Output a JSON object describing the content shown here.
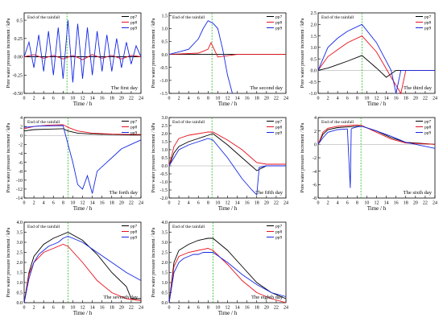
{
  "figure": {
    "common": {
      "ylabel": "Pore water pressure increment / kPa",
      "xlabel": "Time / h",
      "rain_note": "End of the rainfall",
      "series_colors": {
        "pp7": "#000000",
        "pp8": "#e8101c",
        "pp9": "#1428e6"
      },
      "rain_line_color": "#22bb22"
    },
    "x_ticks": [
      "0",
      "2",
      "4",
      "6",
      "8",
      "10",
      "12",
      "14",
      "16",
      "18",
      "20",
      "22",
      "24"
    ]
  },
  "chart_data": [
    {
      "type": "line",
      "title": "The first day",
      "xlim": [
        0,
        24
      ],
      "ylim": [
        -0.5,
        0.6
      ],
      "yticks": [
        "0.5",
        "0.25",
        "0.00",
        "-0.25",
        "-0.50"
      ],
      "ytick_values": [
        0.5,
        0.25,
        0,
        -0.25,
        -0.5
      ],
      "rain_end": 8.8,
      "series": [
        {
          "name": "pp7",
          "x": [
            0,
            4,
            8,
            12,
            16,
            20,
            24
          ],
          "y": [
            0,
            0,
            0,
            0,
            0,
            0,
            0
          ]
        },
        {
          "name": "pp8",
          "x": [
            0,
            2,
            4,
            6,
            8,
            10,
            12,
            14,
            16,
            18,
            20,
            22,
            24
          ],
          "y": [
            0,
            0.03,
            -0.02,
            0.02,
            -0.03,
            0.02,
            -0.04,
            0.03,
            -0.02,
            0.02,
            -0.03,
            0.02,
            0
          ]
        },
        {
          "name": "pp9",
          "x": [
            0,
            1,
            2,
            3,
            4,
            5,
            6,
            7,
            8,
            9,
            10,
            11,
            12,
            13,
            14,
            15,
            16,
            17,
            18,
            19,
            20,
            21,
            22,
            23,
            24
          ],
          "y": [
            0,
            0.2,
            -0.15,
            0.3,
            -0.2,
            0.35,
            -0.25,
            0.4,
            -0.3,
            0.5,
            -0.35,
            0.45,
            -0.3,
            0.4,
            -0.25,
            0.35,
            -0.2,
            0.3,
            -0.2,
            0.25,
            -0.15,
            0.2,
            -0.1,
            0.15,
            0
          ]
        }
      ]
    },
    {
      "type": "line",
      "title": "The second day",
      "xlim": [
        0,
        24
      ],
      "ylim": [
        -1.5,
        1.6
      ],
      "yticks": [
        "1.5",
        "1.0",
        "0.5",
        "0.0",
        "-0.5",
        "-1.0",
        "-1.5"
      ],
      "ytick_values": [
        1.5,
        1,
        0.5,
        0,
        -0.5,
        -1,
        -1.5
      ],
      "rain_end": 8.8,
      "series": [
        {
          "name": "pp7",
          "x": [
            0,
            4,
            8,
            12,
            16,
            20,
            24
          ],
          "y": [
            0,
            0,
            0,
            0,
            0,
            0,
            0
          ]
        },
        {
          "name": "pp8",
          "x": [
            0,
            6,
            8,
            8.6,
            10,
            12,
            14,
            18,
            24
          ],
          "y": [
            0,
            0.05,
            0.2,
            0.45,
            -0.1,
            -0.05,
            0,
            0,
            0
          ]
        },
        {
          "name": "pp9",
          "x": [
            0,
            2,
            4,
            6,
            7,
            8,
            9,
            10,
            11,
            12,
            13
          ],
          "y": [
            0,
            0.1,
            0.2,
            0.6,
            1.0,
            1.3,
            1.2,
            1.0,
            0.2,
            -0.8,
            -1.5
          ]
        }
      ]
    },
    {
      "type": "line",
      "title": "The third day",
      "xlim": [
        0,
        24
      ],
      "ylim": [
        -1.0,
        2.5
      ],
      "yticks": [
        "2.5",
        "2.0",
        "1.5",
        "1.0",
        "0.5",
        "0.0",
        "-0.5",
        "-1.0"
      ],
      "ytick_values": [
        2.5,
        2,
        1.5,
        1,
        0.5,
        0,
        -0.5,
        -1
      ],
      "rain_end": 9.0,
      "series": [
        {
          "name": "pp7",
          "x": [
            0,
            2,
            4,
            6,
            9,
            12,
            14,
            16,
            24
          ],
          "y": [
            0,
            0.1,
            0.25,
            0.4,
            0.65,
            0.1,
            -0.3,
            0,
            0
          ]
        },
        {
          "name": "pp8",
          "x": [
            0,
            1,
            2,
            4,
            6,
            9,
            12,
            15,
            17,
            18,
            24
          ],
          "y": [
            0,
            0.3,
            0.6,
            0.9,
            1.2,
            1.5,
            0.8,
            -0.3,
            -1.0,
            0,
            0
          ]
        },
        {
          "name": "pp9",
          "x": [
            0,
            1,
            2,
            4,
            6,
            9,
            12,
            15,
            16,
            17,
            24
          ],
          "y": [
            0,
            0.5,
            1.0,
            1.4,
            1.7,
            2.0,
            1.2,
            0,
            -1.0,
            0,
            0
          ]
        }
      ]
    },
    {
      "type": "line",
      "title": "The forth day",
      "xlim": [
        0,
        24
      ],
      "ylim": [
        -14,
        4
      ],
      "yticks": [
        "4",
        "2",
        "0",
        "-2",
        "-4",
        "-6",
        "-8",
        "-10",
        "-12",
        "-14"
      ],
      "ytick_values": [
        4,
        2,
        0,
        -2,
        -4,
        -6,
        -8,
        -10,
        -12,
        -14
      ],
      "rain_end": 9.0,
      "series": [
        {
          "name": "pp7",
          "x": [
            0,
            2,
            5,
            8,
            9,
            11,
            14,
            18,
            22,
            24
          ],
          "y": [
            1,
            1.3,
            1.4,
            1.5,
            1.0,
            0.5,
            0.3,
            0.2,
            0.1,
            0.1
          ]
        },
        {
          "name": "pp8",
          "x": [
            0,
            2,
            5,
            8,
            9,
            11,
            14,
            18,
            22,
            24
          ],
          "y": [
            1.5,
            2.0,
            2.3,
            2.4,
            1.8,
            1.0,
            0.5,
            0.3,
            0.2,
            0.2
          ]
        },
        {
          "name": "pp9",
          "x": [
            0,
            3,
            8,
            9,
            10,
            11,
            12,
            13,
            14,
            15,
            16,
            18,
            20,
            22,
            24
          ],
          "y": [
            1.8,
            2.1,
            2.2,
            -2,
            -6,
            -11,
            -12,
            -9,
            -13,
            -8,
            -7,
            -5,
            -3,
            -2,
            -1
          ]
        }
      ]
    },
    {
      "type": "line",
      "title": "The fifth day",
      "xlim": [
        0,
        24
      ],
      "ylim": [
        -2.0,
        3.0
      ],
      "yticks": [
        "3.0",
        "2.5",
        "2.0",
        "1.5",
        "1.0",
        "0.5",
        "0.0",
        "-0.5",
        "-1.0",
        "-1.5",
        "-2.0"
      ],
      "ytick_values": [
        3,
        2.5,
        2,
        1.5,
        1,
        0.5,
        0,
        -0.5,
        -1,
        -1.5,
        -2
      ],
      "rain_end": 8.8,
      "series": [
        {
          "name": "pp7",
          "x": [
            0,
            1,
            2,
            4,
            6,
            8,
            9,
            12,
            15,
            18,
            20,
            24
          ],
          "y": [
            0,
            0.8,
            1.2,
            1.5,
            1.7,
            1.9,
            2.0,
            1.3,
            0.5,
            -0.3,
            0,
            0
          ]
        },
        {
          "name": "pp8",
          "x": [
            0,
            1,
            2,
            4,
            6,
            8,
            9,
            12,
            15,
            18,
            20,
            24
          ],
          "y": [
            0,
            1.2,
            1.7,
            1.9,
            2.0,
            2.1,
            2.1,
            1.6,
            1.0,
            0.2,
            0.1,
            0.1
          ]
        },
        {
          "name": "pp9",
          "x": [
            0,
            1,
            2,
            4,
            6,
            8,
            9,
            12,
            15,
            17,
            18,
            18.5,
            20,
            24
          ],
          "y": [
            0,
            0.5,
            1.0,
            1.3,
            1.5,
            1.7,
            1.6,
            0.5,
            -0.8,
            -1.5,
            -1.8,
            -0.1,
            0,
            0
          ]
        }
      ]
    },
    {
      "type": "line",
      "title": "The sixth day",
      "xlim": [
        0,
        24
      ],
      "ylim": [
        -8,
        4
      ],
      "yticks": [
        "4",
        "2",
        "0",
        "-2",
        "-4",
        "-6",
        "-8"
      ],
      "ytick_values": [
        4,
        2,
        0,
        -2,
        -4,
        -6,
        -8
      ],
      "rain_end": 8.8,
      "series": [
        {
          "name": "pp7",
          "x": [
            0,
            1,
            2,
            4,
            6,
            8,
            9,
            12,
            15,
            18,
            24
          ],
          "y": [
            0,
            1.5,
            2.2,
            2.5,
            2.6,
            2.7,
            2.7,
            2.0,
            1.0,
            0.3,
            0
          ]
        },
        {
          "name": "pp8",
          "x": [
            0,
            1,
            2,
            4,
            6,
            8,
            9,
            12,
            15,
            18,
            24
          ],
          "y": [
            0,
            1.8,
            2.4,
            2.7,
            2.8,
            2.9,
            2.8,
            1.8,
            0.8,
            0.2,
            0
          ]
        },
        {
          "name": "pp9",
          "x": [
            0,
            1,
            2,
            4,
            6,
            6.6,
            6.8,
            7,
            8,
            9,
            12,
            15,
            18,
            24
          ],
          "y": [
            0,
            1.0,
            1.8,
            2.2,
            2.3,
            -6.5,
            2.3,
            2.4,
            2.6,
            2.7,
            2.0,
            1.2,
            0.3,
            -0.6
          ]
        }
      ]
    },
    {
      "type": "line",
      "title": "The seventh day",
      "xlim": [
        0,
        24
      ],
      "ylim": [
        0,
        4.0
      ],
      "yticks": [
        "4.0",
        "3.5",
        "3.0",
        "2.5",
        "2.0",
        "1.5",
        "1.0",
        "0.5",
        "0.0"
      ],
      "ytick_values": [
        4,
        3.5,
        3,
        2.5,
        2,
        1.5,
        1,
        0.5,
        0
      ],
      "rain_end": 9.0,
      "series": [
        {
          "name": "pp7",
          "x": [
            0,
            1,
            2,
            4,
            6,
            8,
            9,
            12,
            15,
            18,
            21,
            22,
            24
          ],
          "y": [
            0,
            1.5,
            2.3,
            2.9,
            3.2,
            3.4,
            3.5,
            3.1,
            2.4,
            1.5,
            0.8,
            0.2,
            0.2
          ]
        },
        {
          "name": "pp8",
          "x": [
            0,
            1,
            2,
            4,
            6,
            8,
            9,
            12,
            15,
            18,
            21,
            24
          ],
          "y": [
            0,
            1.4,
            2.0,
            2.5,
            2.7,
            2.9,
            2.8,
            2.0,
            1.1,
            0.5,
            0.2,
            0.1
          ]
        },
        {
          "name": "pp9",
          "x": [
            0,
            1,
            2,
            3,
            4,
            5,
            6,
            7,
            8,
            9,
            12,
            15,
            18,
            21,
            24
          ],
          "y": [
            0,
            1.2,
            2.0,
            2.4,
            2.6,
            2.8,
            2.9,
            3.0,
            3.2,
            3.3,
            3.0,
            2.5,
            2.0,
            1.5,
            1.1
          ]
        }
      ]
    },
    {
      "type": "line",
      "title": "The eighth day",
      "xlim": [
        0,
        24
      ],
      "ylim": [
        0,
        4.0
      ],
      "yticks": [
        "4.0",
        "3.5",
        "3.0",
        "2.5",
        "2.0",
        "1.5",
        "1.0",
        "0.5",
        "0.0"
      ],
      "ytick_values": [
        4,
        3.5,
        3,
        2.5,
        2,
        1.5,
        1,
        0.5,
        0
      ],
      "rain_end": 9.0,
      "series": [
        {
          "name": "pp7",
          "x": [
            0,
            1,
            2,
            4,
            6,
            8,
            9,
            12,
            15,
            18,
            21,
            24
          ],
          "y": [
            0,
            2.0,
            2.6,
            2.9,
            3.1,
            3.2,
            3.2,
            2.6,
            1.8,
            1.0,
            0.5,
            0.2
          ]
        },
        {
          "name": "pp8",
          "x": [
            0,
            1,
            2,
            4,
            6,
            8,
            9,
            12,
            15,
            18,
            21,
            24
          ],
          "y": [
            0,
            1.8,
            2.3,
            2.5,
            2.6,
            2.7,
            2.6,
            1.9,
            1.1,
            0.5,
            0.2,
            0
          ]
        },
        {
          "name": "pp9",
          "x": [
            0,
            1,
            2,
            3,
            4,
            5,
            6,
            7,
            8,
            9,
            12,
            15,
            18,
            21,
            24
          ],
          "y": [
            0,
            1.5,
            2.0,
            2.2,
            2.3,
            2.4,
            2.4,
            2.5,
            2.5,
            2.5,
            2.0,
            1.4,
            0.9,
            0.5,
            0.3
          ]
        }
      ]
    }
  ]
}
